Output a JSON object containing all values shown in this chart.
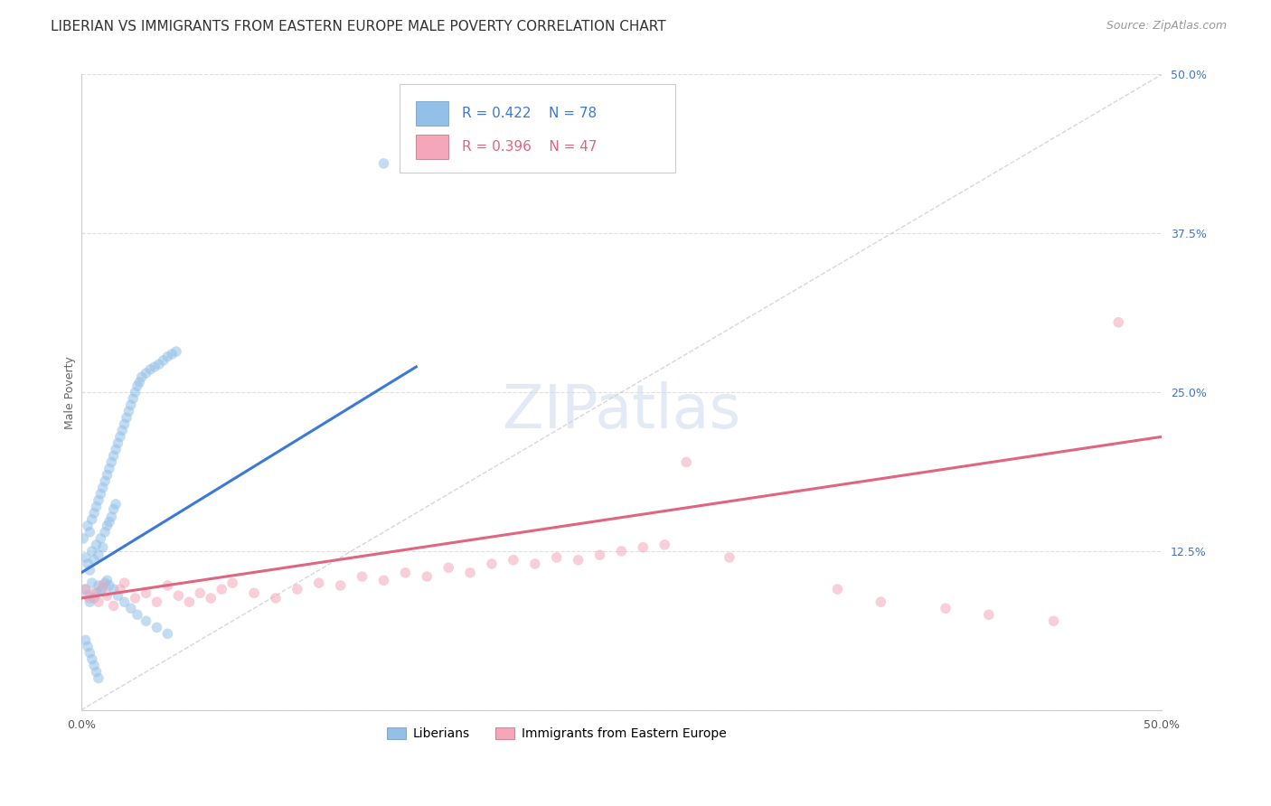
{
  "title": "LIBERIAN VS IMMIGRANTS FROM EASTERN EUROPE MALE POVERTY CORRELATION CHART",
  "source": "Source: ZipAtlas.com",
  "ylabel": "Male Poverty",
  "y_tick_labels": [
    "",
    "12.5%",
    "25.0%",
    "37.5%",
    "50.0%"
  ],
  "y_tick_values": [
    0,
    0.125,
    0.25,
    0.375,
    0.5
  ],
  "x_range": [
    0,
    0.5
  ],
  "y_range": [
    0,
    0.5
  ],
  "blue_color": "#92c0e8",
  "pink_color": "#f4a7b9",
  "blue_line_color": "#3c78d8",
  "pink_line_color": "#e06680",
  "diagonal_color": "#bbbbcc",
  "background_color": "#ffffff",
  "grid_color": "#dddddd",
  "legend_label_blue": "Liberians",
  "legend_label_pink": "Immigrants from Eastern Europe",
  "blue_R_text": "R = 0.422",
  "blue_N_text": "N = 78",
  "pink_R_text": "R = 0.396",
  "pink_N_text": "N = 47",
  "blue_text_color": "#3c78d8",
  "pink_text_color": "#e06680",
  "blue_scatter_x": [
    0.001,
    0.002,
    0.003,
    0.003,
    0.004,
    0.004,
    0.005,
    0.005,
    0.006,
    0.006,
    0.007,
    0.007,
    0.008,
    0.008,
    0.009,
    0.009,
    0.01,
    0.01,
    0.011,
    0.011,
    0.012,
    0.012,
    0.013,
    0.013,
    0.014,
    0.014,
    0.015,
    0.015,
    0.016,
    0.016,
    0.017,
    0.018,
    0.019,
    0.02,
    0.021,
    0.022,
    0.023,
    0.024,
    0.025,
    0.026,
    0.027,
    0.028,
    0.03,
    0.032,
    0.034,
    0.036,
    0.038,
    0.04,
    0.042,
    0.044,
    0.002,
    0.003,
    0.004,
    0.005,
    0.006,
    0.007,
    0.008,
    0.009,
    0.01,
    0.011,
    0.012,
    0.013,
    0.015,
    0.017,
    0.02,
    0.023,
    0.026,
    0.03,
    0.035,
    0.04,
    0.002,
    0.003,
    0.004,
    0.005,
    0.006,
    0.007,
    0.14,
    0.008
  ],
  "blue_scatter_y": [
    0.135,
    0.12,
    0.145,
    0.115,
    0.14,
    0.11,
    0.15,
    0.125,
    0.155,
    0.118,
    0.16,
    0.13,
    0.165,
    0.122,
    0.17,
    0.135,
    0.175,
    0.128,
    0.18,
    0.14,
    0.185,
    0.145,
    0.19,
    0.148,
    0.195,
    0.152,
    0.2,
    0.158,
    0.205,
    0.162,
    0.21,
    0.215,
    0.22,
    0.225,
    0.23,
    0.235,
    0.24,
    0.245,
    0.25,
    0.255,
    0.258,
    0.262,
    0.265,
    0.268,
    0.27,
    0.272,
    0.275,
    0.278,
    0.28,
    0.282,
    0.095,
    0.09,
    0.085,
    0.1,
    0.088,
    0.092,
    0.098,
    0.094,
    0.096,
    0.1,
    0.102,
    0.098,
    0.095,
    0.09,
    0.085,
    0.08,
    0.075,
    0.07,
    0.065,
    0.06,
    0.055,
    0.05,
    0.045,
    0.04,
    0.035,
    0.03,
    0.43,
    0.025
  ],
  "pink_scatter_x": [
    0.002,
    0.004,
    0.006,
    0.008,
    0.01,
    0.012,
    0.015,
    0.018,
    0.02,
    0.025,
    0.03,
    0.035,
    0.04,
    0.045,
    0.05,
    0.055,
    0.06,
    0.065,
    0.07,
    0.08,
    0.09,
    0.1,
    0.11,
    0.12,
    0.13,
    0.14,
    0.15,
    0.16,
    0.17,
    0.18,
    0.19,
    0.2,
    0.21,
    0.22,
    0.23,
    0.24,
    0.25,
    0.26,
    0.27,
    0.28,
    0.3,
    0.35,
    0.37,
    0.4,
    0.42,
    0.45,
    0.48
  ],
  "pink_scatter_y": [
    0.095,
    0.088,
    0.092,
    0.085,
    0.098,
    0.09,
    0.082,
    0.095,
    0.1,
    0.088,
    0.092,
    0.085,
    0.098,
    0.09,
    0.085,
    0.092,
    0.088,
    0.095,
    0.1,
    0.092,
    0.088,
    0.095,
    0.1,
    0.098,
    0.105,
    0.102,
    0.108,
    0.105,
    0.112,
    0.108,
    0.115,
    0.118,
    0.115,
    0.12,
    0.118,
    0.122,
    0.125,
    0.128,
    0.13,
    0.195,
    0.12,
    0.095,
    0.085,
    0.08,
    0.075,
    0.07,
    0.305
  ],
  "blue_line_x": [
    0.0,
    0.155
  ],
  "blue_line_y": [
    0.108,
    0.27
  ],
  "pink_line_x": [
    0.0,
    0.5
  ],
  "pink_line_y": [
    0.088,
    0.215
  ],
  "title_fontsize": 11,
  "source_fontsize": 9,
  "axis_label_fontsize": 9,
  "tick_label_fontsize": 9,
  "marker_size": 70,
  "marker_alpha": 0.55
}
